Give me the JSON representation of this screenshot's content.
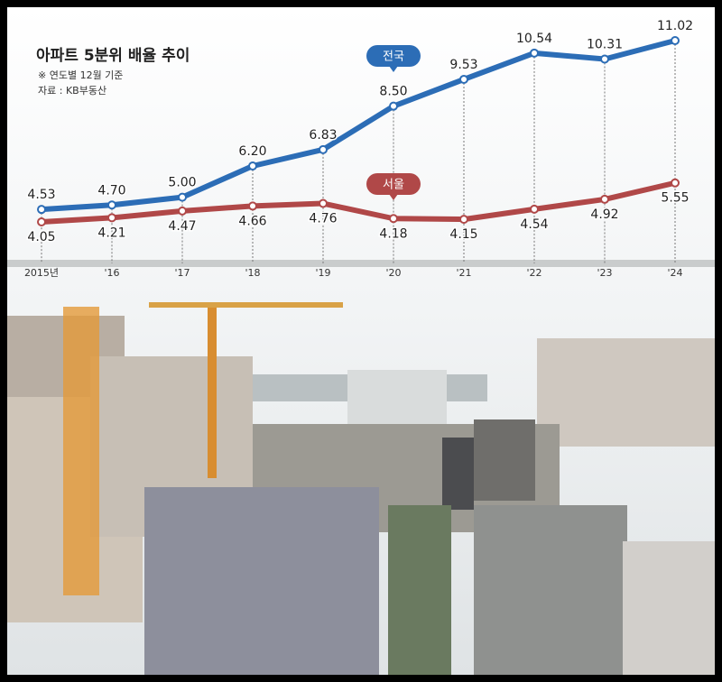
{
  "chart_data": {
    "type": "line",
    "title": "아파트 5분위 배율 추이",
    "subtitle": "※ 연도별 12월 기준",
    "source": "자료 : KB부동산",
    "categories": [
      "2015년",
      "'16",
      "'17",
      "'18",
      "'19",
      "'20",
      "'21",
      "'22",
      "'23",
      "'24"
    ],
    "series": [
      {
        "name": "전국",
        "color": "#2c6db6",
        "values": [
          4.53,
          4.7,
          5.0,
          6.2,
          6.83,
          8.5,
          9.53,
          10.54,
          10.31,
          11.02
        ],
        "value_labels": [
          "4.53",
          "4.70",
          "5.00",
          "6.20",
          "6.83",
          "8.50",
          "9.53",
          "10.54",
          "10.31",
          "11.02"
        ]
      },
      {
        "name": "서울",
        "color": "#b04848",
        "values": [
          4.05,
          4.21,
          4.47,
          4.66,
          4.76,
          4.18,
          4.15,
          4.54,
          4.92,
          5.55
        ],
        "value_labels": [
          "4.05",
          "4.21",
          "4.47",
          "4.66",
          "4.76",
          "4.18",
          "4.15",
          "4.54",
          "4.92",
          "5.55"
        ]
      }
    ]
  }
}
